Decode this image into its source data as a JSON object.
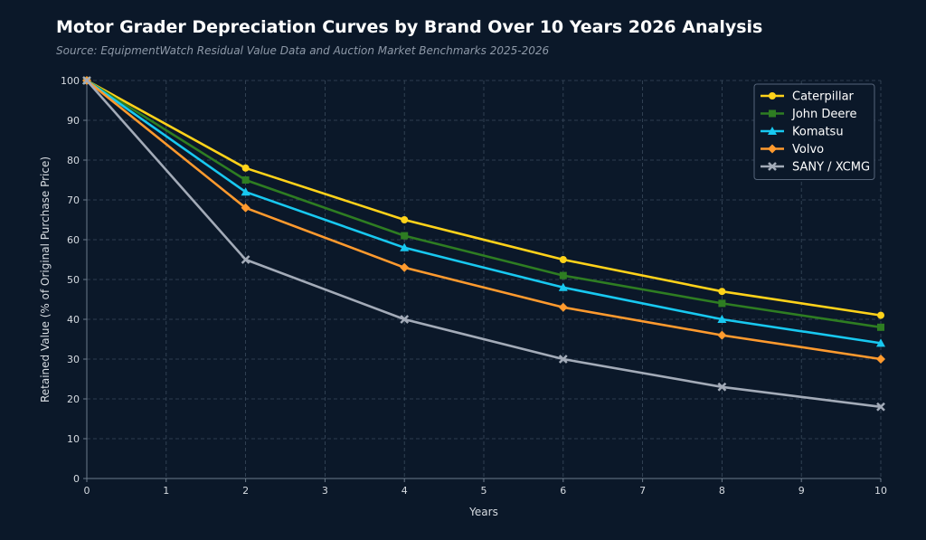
{
  "chart_data": {
    "type": "line",
    "title": "Motor Grader Depreciation Curves by Brand Over 10 Years 2026 Analysis",
    "subtitle": "Source: EquipmentWatch Residual Value Data and Auction Market Benchmarks 2025-2026",
    "xlabel": "Years",
    "ylabel": "Retained Value (% of Original Purchase Price)",
    "xlim": [
      0,
      10
    ],
    "ylim": [
      0,
      100
    ],
    "x_ticks": [
      0,
      1,
      2,
      3,
      4,
      5,
      6,
      7,
      8,
      9,
      10
    ],
    "y_ticks": [
      0,
      10,
      20,
      30,
      40,
      50,
      60,
      70,
      80,
      90,
      100
    ],
    "grid": true,
    "legend_position": "top-right",
    "x": [
      0,
      2,
      4,
      6,
      8,
      10
    ],
    "series": [
      {
        "name": "Caterpillar",
        "color": "#ffd21a",
        "marker": "circle",
        "values": [
          100,
          78,
          65,
          55,
          47,
          41
        ]
      },
      {
        "name": "John Deere",
        "color": "#2e7d22",
        "marker": "square",
        "values": [
          100,
          75,
          61,
          51,
          44,
          38
        ]
      },
      {
        "name": "Komatsu",
        "color": "#18c8f0",
        "marker": "triangle",
        "values": [
          100,
          72,
          58,
          48,
          40,
          34
        ]
      },
      {
        "name": "Volvo",
        "color": "#ff9a2e",
        "marker": "diamond",
        "values": [
          100,
          68,
          53,
          43,
          36,
          30
        ]
      },
      {
        "name": "SANY / XCMG",
        "color": "#a3abb8",
        "marker": "x",
        "values": [
          100,
          55,
          40,
          30,
          23,
          18
        ]
      }
    ]
  }
}
